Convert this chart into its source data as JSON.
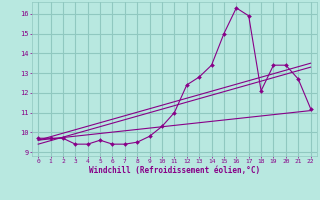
{
  "title": "",
  "xlabel": "Windchill (Refroidissement éolien,°C)",
  "ylabel": "",
  "bg_color": "#b8e8e0",
  "grid_color": "#90c8c0",
  "line_color": "#880088",
  "marker_color": "#880088",
  "xlim": [
    -0.5,
    22.5
  ],
  "ylim": [
    8.8,
    16.6
  ],
  "xticks": [
    0,
    1,
    2,
    3,
    4,
    5,
    6,
    7,
    8,
    9,
    10,
    11,
    12,
    13,
    14,
    15,
    16,
    17,
    18,
    19,
    20,
    21,
    22
  ],
  "yticks": [
    9,
    10,
    11,
    12,
    13,
    14,
    15,
    16
  ],
  "curve1_x": [
    0,
    1,
    2,
    3,
    4,
    5,
    6,
    7,
    8,
    9,
    10,
    11,
    12,
    13,
    14,
    15,
    16,
    17,
    18,
    19,
    20,
    21,
    22
  ],
  "curve1_y": [
    9.7,
    9.7,
    9.7,
    9.4,
    9.4,
    9.6,
    9.4,
    9.4,
    9.5,
    9.8,
    10.3,
    11.0,
    12.4,
    12.8,
    13.4,
    15.0,
    16.3,
    15.9,
    12.1,
    13.4,
    13.4,
    12.7,
    11.2
  ],
  "line1_x": [
    0,
    22
  ],
  "line1_y": [
    9.6,
    11.1
  ],
  "line2_x": [
    0,
    22
  ],
  "line2_y": [
    9.6,
    13.5
  ],
  "line3_x": [
    0,
    22
  ],
  "line3_y": [
    9.4,
    13.3
  ]
}
